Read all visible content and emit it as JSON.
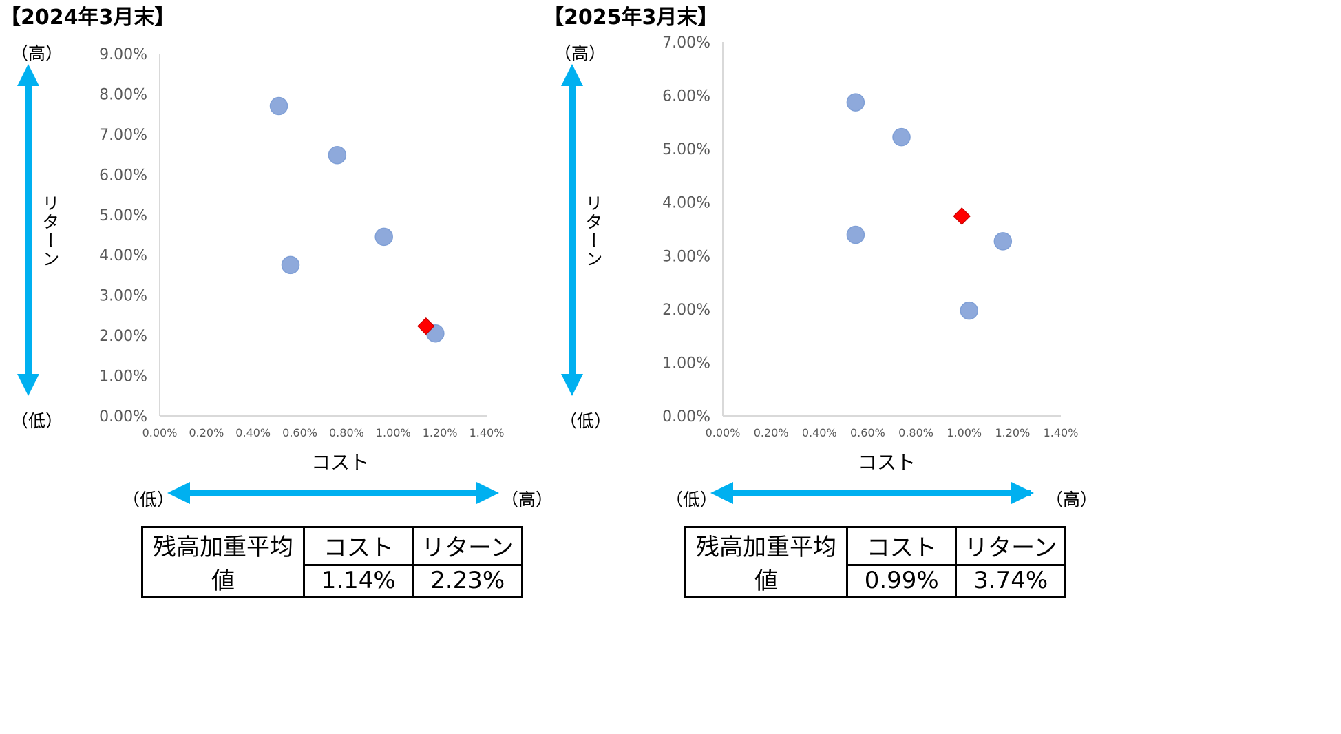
{
  "panels": [
    {
      "title": "【2024年3月末】",
      "y_high_label": "（高）",
      "y_low_label": "（低）",
      "y_axis_text": "リターン",
      "x_axis_title": "コスト",
      "x_low_label": "（低）",
      "x_high_label": "（高）",
      "table": {
        "row_label": "残高加重平均値",
        "col_cost": "コスト",
        "col_return": "リターン",
        "cost_value": "1.14%",
        "return_value": "2.23%"
      }
    },
    {
      "title": "【2025年3月末】",
      "y_high_label": "（高）",
      "y_low_label": "（低）",
      "y_axis_text": "リターン",
      "x_axis_title": "コスト",
      "x_low_label": "（低）",
      "x_high_label": "（高）",
      "table": {
        "row_label": "残高加重平均値",
        "col_cost": "コスト",
        "col_return": "リターン",
        "cost_value": "0.99%",
        "return_value": "3.74%"
      }
    }
  ],
  "colors": {
    "arrow": "#00B0F0",
    "point": "#8EA9DB",
    "point_stroke": "#7F9FD6",
    "average_marker": "#FF0000",
    "axis": "#D9D9D9"
  },
  "chart_data": [
    {
      "type": "scatter",
      "title": "【2024年3月末】",
      "xlabel": "コスト",
      "ylabel": "",
      "xlim": [
        0,
        1.4
      ],
      "ylim": [
        0,
        9
      ],
      "x_ticks": [
        "0.00%",
        "0.20%",
        "0.40%",
        "0.60%",
        "0.80%",
        "1.00%",
        "1.20%",
        "1.40%"
      ],
      "y_ticks": [
        "0.00%",
        "1.00%",
        "2.00%",
        "3.00%",
        "4.00%",
        "5.00%",
        "6.00%",
        "7.00%",
        "8.00%",
        "9.00%"
      ],
      "grid": false,
      "series": [
        {
          "marker": "circle",
          "points": [
            [
              0.51,
              7.7
            ],
            [
              0.76,
              6.48
            ],
            [
              0.56,
              3.75
            ],
            [
              0.96,
              4.45
            ],
            [
              1.18,
              2.05
            ]
          ]
        },
        {
          "marker": "diamond",
          "points": [
            [
              1.14,
              2.23
            ]
          ]
        }
      ]
    },
    {
      "type": "scatter",
      "title": "【2025年3月末】",
      "xlabel": "コスト",
      "ylabel": "",
      "xlim": [
        0,
        1.4
      ],
      "ylim": [
        0,
        7
      ],
      "x_ticks": [
        "0.00%",
        "0.20%",
        "0.40%",
        "0.60%",
        "0.80%",
        "1.00%",
        "1.20%",
        "1.40%"
      ],
      "y_ticks": [
        "0.00%",
        "1.00%",
        "2.00%",
        "3.00%",
        "4.00%",
        "5.00%",
        "6.00%",
        "7.00%"
      ],
      "grid": false,
      "series": [
        {
          "marker": "circle",
          "points": [
            [
              0.55,
              5.87
            ],
            [
              0.74,
              5.22
            ],
            [
              0.55,
              3.39
            ],
            [
              1.16,
              3.27
            ],
            [
              1.02,
              1.97
            ]
          ]
        },
        {
          "marker": "diamond",
          "points": [
            [
              0.99,
              3.74
            ]
          ]
        }
      ]
    }
  ]
}
